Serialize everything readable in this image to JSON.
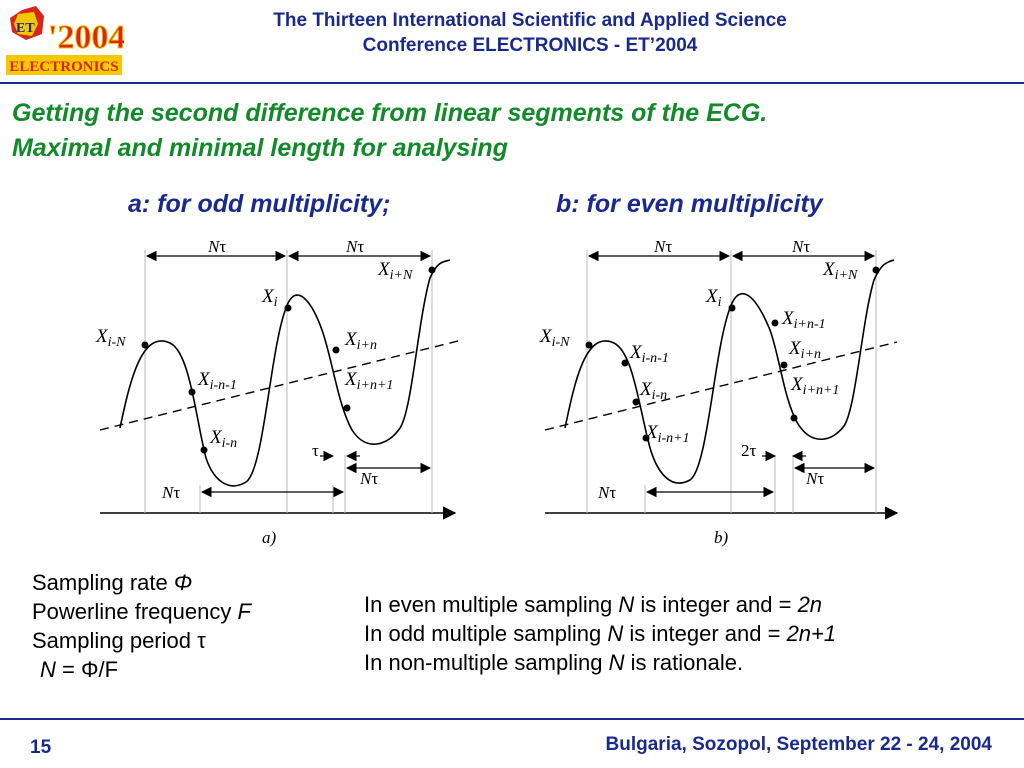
{
  "header": {
    "logo": {
      "year": "'2004",
      "badge": "ET",
      "banner": "ELECTRONICS"
    },
    "conference_line1": "The Thirteen International Scientific and Applied Science",
    "conference_line2": "Conference ELECTRONICS - ET’2004"
  },
  "slide": {
    "title_line1": "Getting the second difference from linear segments of the ECG.",
    "title_line2": "Maximal and minimal length for analysing",
    "caption_a": "a: for odd multiplicity;",
    "caption_b": "b: for even multiplicity"
  },
  "diagram_a": {
    "sublabel": "a)",
    "labels": {
      "n_tau": "N",
      "tau": "τ",
      "x": "X",
      "i": "i",
      "i_minus_N": "i-N",
      "i_plus_N": "i+N",
      "i_minus_n": "i-n",
      "i_minus_n_minus_1": "i-n-1",
      "i_plus_n": "i+n",
      "i_plus_n_plus_1": "i+n+1"
    }
  },
  "diagram_b": {
    "sublabel": "b)",
    "two_tau": "2τ",
    "labels": {
      "i_plus_n_minus_1": "i+n-1",
      "i_minus_n_plus_1": "i-n+1"
    }
  },
  "definitions": {
    "sampling_rate": "Sampling rate",
    "sampling_rate_sym": "Φ",
    "powerline": "Powerline frequency",
    "powerline_sym": "F",
    "sampling_period": "Sampling period",
    "sampling_period_sym": "τ",
    "formula_lhs": "N",
    "formula_rhs": "= Φ/F"
  },
  "rules": {
    "even_text": "In even multiple sampling",
    "even_sym": "N",
    "even_mid": "is integer and =",
    "even_val": "2n",
    "odd_text": "In odd multiple sampling",
    "odd_sym": "N",
    "odd_mid": "is integer and =",
    "odd_val": "2n+1",
    "non_text": "In non-multiple sampling",
    "non_sym": "N",
    "non_mid": "is rationale."
  },
  "footer": {
    "page_number": "15",
    "location": "Bulgaria, Sozopol, September 22 - 24, 2004"
  },
  "colors": {
    "navy": "#1a2a8c",
    "green": "#128a2a",
    "logo_red": "#d8261f",
    "logo_yellow": "#f5c800"
  }
}
